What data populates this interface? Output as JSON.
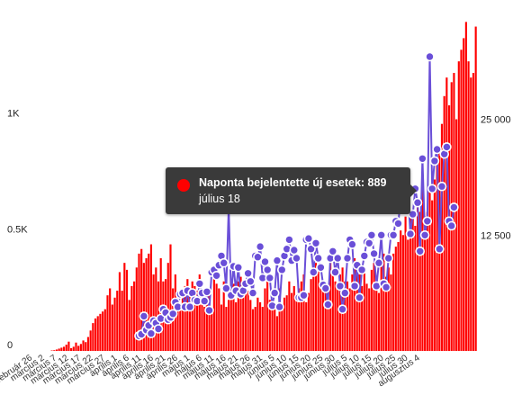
{
  "colors": {
    "bars": "#ff0000",
    "line": "#6a4fd8",
    "point_fill": "#ffffff",
    "tooltip_bg": "#3a3a3a",
    "tooltip_dot": "#ff0000"
  },
  "tooltip": {
    "series": "Naponta bejelentette új esetek: 889",
    "date": "július 18"
  },
  "chart_data": {
    "type": "bar",
    "left_axis_ticks": [
      "0",
      "0.5K",
      "1K"
    ],
    "left_axis_values": [
      0,
      500,
      1000
    ],
    "right_axis_ticks": [
      "12 500",
      "25 000"
    ],
    "right_axis_values": [
      12500,
      25000
    ],
    "ylim_left": [
      0,
      1340
    ],
    "ylim_right": [
      0,
      33500
    ],
    "grid": false,
    "x_tick_labels": [
      "február 26",
      "március 2",
      "március 7",
      "március 12",
      "március 17",
      "március 22",
      "március 27",
      "április 1",
      "április 6",
      "április 11",
      "április 16",
      "április 21",
      "április 26",
      "május 1",
      "május 6",
      "május 11",
      "május 16",
      "május 21",
      "május 26",
      "május 31",
      "június 5",
      "június 10",
      "június 15",
      "június 20",
      "június 25",
      "június 30",
      "július 5",
      "július 10",
      "július 15",
      "július 20",
      "július 25",
      "július 30",
      "augusztus 4"
    ],
    "bar_series_values": [
      0,
      0,
      0,
      0,
      0,
      0,
      0,
      0,
      0,
      2,
      3,
      6,
      10,
      14,
      18,
      27,
      40,
      12,
      18,
      36,
      22,
      30,
      45,
      38,
      60,
      88,
      120,
      140,
      150,
      160,
      170,
      180,
      240,
      270,
      200,
      230,
      260,
      340,
      260,
      380,
      350,
      220,
      280,
      300,
      360,
      420,
      440,
      380,
      400,
      420,
      460,
      330,
      360,
      300,
      400,
      300,
      310,
      380,
      460,
      270,
      330,
      240,
      190,
      230,
      280,
      310,
      250,
      300,
      280,
      260,
      330,
      210,
      190,
      230,
      260,
      160,
      310,
      290,
      270,
      200,
      300,
      190,
      220,
      260,
      290,
      210,
      300,
      320,
      260,
      300,
      260,
      220,
      180,
      190,
      230,
      210,
      190,
      270,
      310,
      220,
      220,
      180,
      150,
      270,
      190,
      230,
      240,
      300,
      250,
      280,
      220,
      270,
      300,
      330,
      210,
      250,
      310,
      330,
      380,
      350,
      290,
      300,
      280,
      280,
      400,
      350,
      300,
      280,
      330,
      360,
      300,
      300,
      270,
      330,
      400,
      380,
      330,
      280,
      350,
      290,
      270,
      350,
      380,
      300,
      250,
      380,
      420,
      320,
      360,
      330,
      420,
      450,
      470,
      520,
      500,
      580,
      480,
      600,
      600,
      540,
      640,
      600,
      700,
      580,
      600,
      700,
      650,
      740,
      800,
      860,
      980,
      1100,
      1180,
      1060,
      1160,
      1200,
      1000,
      1250,
      1300,
      1350,
      1420,
      1250,
      1180,
      1200,
      1400
    ],
    "line_series": [
      {
        "day": 45,
        "value": 65
      },
      {
        "day": 46,
        "value": 72
      },
      {
        "day": 47,
        "value": 150
      },
      {
        "day": 48,
        "value": 90
      },
      {
        "day": 49,
        "value": 110
      },
      {
        "day": 50,
        "value": 75
      },
      {
        "day": 51,
        "value": 130
      },
      {
        "day": 52,
        "value": 120
      },
      {
        "day": 53,
        "value": 95
      },
      {
        "day": 54,
        "value": 140
      },
      {
        "day": 55,
        "value": 180
      },
      {
        "day": 56,
        "value": 165
      },
      {
        "day": 57,
        "value": 135
      },
      {
        "day": 58,
        "value": 145
      },
      {
        "day": 59,
        "value": 160
      },
      {
        "day": 60,
        "value": 210
      },
      {
        "day": 61,
        "value": 190
      },
      {
        "day": 62,
        "value": 245
      },
      {
        "day": 63,
        "value": 250
      },
      {
        "day": 64,
        "value": 190
      },
      {
        "day": 65,
        "value": 260
      },
      {
        "day": 66,
        "value": 190
      },
      {
        "day": 67,
        "value": 250
      },
      {
        "day": 68,
        "value": 220
      },
      {
        "day": 69,
        "value": 215
      },
      {
        "day": 70,
        "value": 290
      },
      {
        "day": 71,
        "value": 250
      },
      {
        "day": 72,
        "value": 215
      },
      {
        "day": 73,
        "value": 255
      },
      {
        "day": 74,
        "value": 175
      },
      {
        "day": 75,
        "value": 340
      },
      {
        "day": 76,
        "value": 350
      },
      {
        "day": 77,
        "value": 325
      },
      {
        "day": 78,
        "value": 370
      },
      {
        "day": 79,
        "value": 410
      },
      {
        "day": 80,
        "value": 380
      },
      {
        "day": 81,
        "value": 270
      },
      {
        "day": 82,
        "value": 620
      },
      {
        "day": 83,
        "value": 240
      },
      {
        "day": 84,
        "value": 365
      },
      {
        "day": 85,
        "value": 260
      },
      {
        "day": 86,
        "value": 360
      },
      {
        "day": 87,
        "value": 245
      },
      {
        "day": 88,
        "value": 260
      },
      {
        "day": 89,
        "value": 290
      },
      {
        "day": 90,
        "value": 335
      },
      {
        "day": 91,
        "value": 300
      },
      {
        "day": 92,
        "value": 250
      },
      {
        "day": 93,
        "value": 410
      },
      {
        "day": 94,
        "value": 405
      },
      {
        "day": 95,
        "value": 450
      },
      {
        "day": 96,
        "value": 315
      },
      {
        "day": 97,
        "value": 385
      },
      {
        "day": 98,
        "value": 350
      },
      {
        "day": 99,
        "value": 315
      },
      {
        "day": 100,
        "value": 195
      },
      {
        "day": 101,
        "value": 250
      },
      {
        "day": 102,
        "value": 390
      },
      {
        "day": 103,
        "value": 190
      },
      {
        "day": 104,
        "value": 350
      },
      {
        "day": 105,
        "value": 410
      },
      {
        "day": 106,
        "value": 440
      },
      {
        "day": 107,
        "value": 480
      },
      {
        "day": 108,
        "value": 390
      },
      {
        "day": 109,
        "value": 435
      },
      {
        "day": 110,
        "value": 400
      },
      {
        "day": 111,
        "value": 230
      },
      {
        "day": 112,
        "value": 230
      },
      {
        "day": 113,
        "value": 240
      },
      {
        "day": 114,
        "value": 480
      },
      {
        "day": 115,
        "value": 485
      },
      {
        "day": 116,
        "value": 440
      },
      {
        "day": 117,
        "value": 340
      },
      {
        "day": 118,
        "value": 465
      },
      {
        "day": 119,
        "value": 400
      },
      {
        "day": 120,
        "value": 360
      },
      {
        "day": 121,
        "value": 285
      },
      {
        "day": 122,
        "value": 270
      },
      {
        "day": 123,
        "value": 200
      },
      {
        "day": 124,
        "value": 400
      },
      {
        "day": 125,
        "value": 430
      },
      {
        "day": 126,
        "value": 340
      },
      {
        "day": 127,
        "value": 400
      },
      {
        "day": 128,
        "value": 280
      },
      {
        "day": 129,
        "value": 180
      },
      {
        "day": 130,
        "value": 250
      },
      {
        "day": 131,
        "value": 400
      },
      {
        "day": 132,
        "value": 480
      },
      {
        "day": 133,
        "value": 460
      },
      {
        "day": 134,
        "value": 280
      },
      {
        "day": 135,
        "value": 370
      },
      {
        "day": 136,
        "value": 230
      },
      {
        "day": 137,
        "value": 350
      },
      {
        "day": 138,
        "value": 410
      },
      {
        "day": 139,
        "value": 470
      },
      {
        "day": 140,
        "value": 465
      },
      {
        "day": 141,
        "value": 500
      },
      {
        "day": 142,
        "value": 420
      },
      {
        "day": 143,
        "value": 280
      },
      {
        "day": 144,
        "value": 380
      },
      {
        "day": 145,
        "value": 500
      },
      {
        "day": 146,
        "value": 290
      },
      {
        "day": 147,
        "value": 275
      },
      {
        "day": 148,
        "value": 400
      },
      {
        "day": 149,
        "value": 500
      },
      {
        "day": 150,
        "value": 500
      },
      {
        "day": 151,
        "value": 560
      },
      {
        "day": 152,
        "value": 550
      },
      {
        "day": 153,
        "value": 660
      },
      {
        "day": 154,
        "value": 615
      },
      {
        "day": 155,
        "value": 630
      },
      {
        "day": 156,
        "value": 680
      },
      {
        "day": 157,
        "value": 505
      },
      {
        "day": 158,
        "value": 590
      },
      {
        "day": 159,
        "value": 700
      },
      {
        "day": 160,
        "value": 640
      },
      {
        "day": 161,
        "value": 430
      },
      {
        "day": 162,
        "value": 830
      },
      {
        "day": 163,
        "value": 500
      },
      {
        "day": 164,
        "value": 560
      },
      {
        "day": 165,
        "value": 1270
      },
      {
        "day": 166,
        "value": 700
      },
      {
        "day": 167,
        "value": 820
      },
      {
        "day": 168,
        "value": 870
      },
      {
        "day": 169,
        "value": 440
      },
      {
        "day": 170,
        "value": 710
      },
      {
        "day": 171,
        "value": 850
      },
      {
        "day": 172,
        "value": 880
      },
      {
        "day": 173,
        "value": 560
      },
      {
        "day": 174,
        "value": 540
      },
      {
        "day": 175,
        "value": 620
      }
    ]
  }
}
